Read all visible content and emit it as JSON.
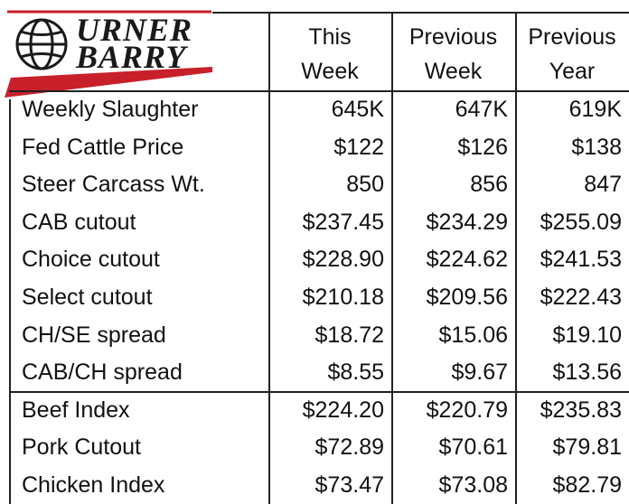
{
  "logo": {
    "line1": "URNER",
    "line2": "BARRY"
  },
  "table": {
    "headers": [
      [
        "This",
        "Week"
      ],
      [
        "Previous",
        "Week"
      ],
      [
        "Previous",
        "Year"
      ]
    ],
    "rows": [
      [
        "Weekly Slaughter",
        "645K",
        "647K",
        "619K"
      ],
      [
        "Fed Cattle Price",
        "$122",
        "$126",
        "$138"
      ],
      [
        "Steer Carcass Wt.",
        "850",
        "856",
        "847"
      ],
      [
        "CAB cutout",
        "$237.45",
        "$234.29",
        "$255.09"
      ],
      [
        "Choice cutout",
        "$228.90",
        "$224.62",
        "$241.53"
      ],
      [
        "Select cutout",
        "$210.18",
        "$209.56",
        "$222.43"
      ],
      [
        "CH/SE spread",
        "$18.72",
        "$15.06",
        "$19.10"
      ],
      [
        "CAB/CH spread",
        "$8.55",
        "$9.67",
        "$13.56"
      ],
      [
        "Beef Index",
        "$224.20",
        "$220.79",
        "$235.83"
      ],
      [
        "Pork Cutout",
        "$72.89",
        "$70.61",
        "$79.81"
      ],
      [
        "Chicken Index",
        "$73.47",
        "$73.08",
        "$82.79"
      ]
    ]
  }
}
